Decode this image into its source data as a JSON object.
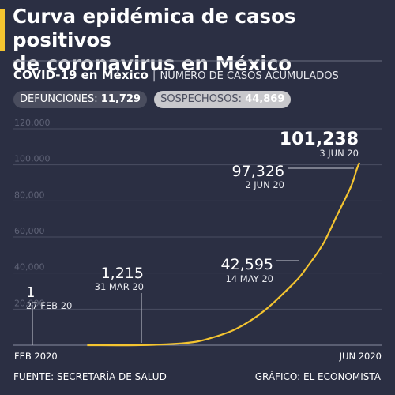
{
  "header": {
    "title_line1": "Curva epidémica de casos positivos",
    "title_line2": "de coronavirus en México",
    "subtitle_bold": "COVID-19 en México",
    "subtitle_sep": "|",
    "subtitle_rest": "NÚMERO DE CASOS ACUMULADOS"
  },
  "badges": {
    "deaths_label": "DEFUNCIONES:",
    "deaths_value": "11,729",
    "suspected_label": "SOSPECHOSOS:",
    "suspected_value": "44,869"
  },
  "colors": {
    "background": "#2b2f43",
    "accent": "#f4c430",
    "grid": "#4a4e62",
    "tick_text": "#5f6377"
  },
  "chart_data": {
    "type": "line",
    "ylim": [
      0,
      120000
    ],
    "yticks": [
      "20,000",
      "40,000",
      "60,000",
      "80,000",
      "100,000",
      "120,000"
    ],
    "xtick_labels": [
      "FEB 2020",
      "JUN 2020"
    ],
    "grid": true,
    "series": [
      {
        "x": [
          "27 FEB 20",
          "15 MAR 20",
          "31 MAR 20",
          "10 APR 20",
          "20 APR 20",
          "30 APR 20",
          "10 MAY 20",
          "14 MAY 20",
          "20 MAY 20",
          "25 MAY 20",
          "30 MAY 20",
          "2 JUN 20",
          "3 JUN 20"
        ],
        "values": [
          1,
          50,
          1215,
          3500,
          9000,
          19000,
          35000,
          42595,
          56000,
          72000,
          88000,
          97326,
          101238
        ]
      }
    ],
    "annotations": [
      {
        "value": "1",
        "date": "27 FEB 20"
      },
      {
        "value": "1,215",
        "date": "31 MAR 20"
      },
      {
        "value": "42,595",
        "date": "14 MAY 20"
      },
      {
        "value": "97,326",
        "date": "2 JUN 20"
      },
      {
        "value": "101,238",
        "date": "3 JUN 20"
      }
    ]
  },
  "footer": {
    "source": "FUENTE: SECRETARÍA DE SALUD",
    "credit": "GRÁFICO: EL ECONOMISTA"
  }
}
